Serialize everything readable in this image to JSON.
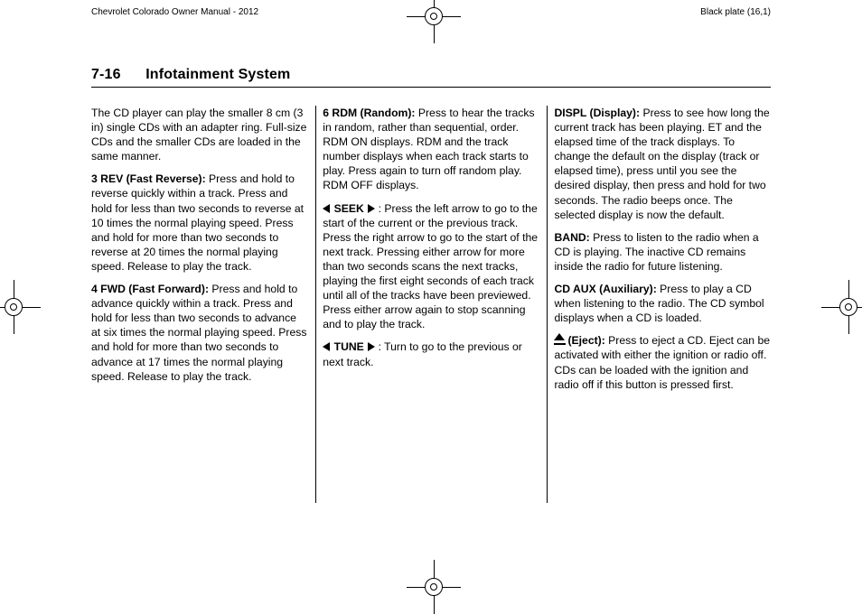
{
  "header": {
    "left": "Chevrolet Colorado Owner Manual - 2012",
    "right": "Black plate (16,1)"
  },
  "page": {
    "number": "7-16",
    "title": "Infotainment System"
  },
  "col1": {
    "p1": "The CD player can play the smaller 8 cm (3 in) single CDs with an adapter ring. Full-size CDs and the smaller CDs are loaded in the same manner.",
    "p2_label": "3 REV (Fast Reverse):",
    "p2_body": "  Press and hold to reverse quickly within a track. Press and hold for less than two seconds to reverse at 10 times the normal playing speed. Press and hold for more than two seconds to reverse at 20 times the normal playing speed. Release to play the track.",
    "p3_label": "4 FWD (Fast Forward):",
    "p3_body": "  Press and hold to advance quickly within a track. Press and hold for less than two seconds to advance at six times the normal playing speed. Press and hold for more than two seconds to advance at 17 times the normal playing speed. Release to play the track."
  },
  "col2": {
    "p1_label": "6 RDM (Random):",
    "p1_body": "  Press to hear the tracks in random, rather than sequential, order. RDM ON displays. RDM and the track number displays when each track starts to play. Press again to turn off random play. RDM OFF displays.",
    "p2_label": "SEEK",
    "p2_body": " :   Press the left arrow to go to the start of the current or the previous track. Press the right arrow to go to the start of the next track. Pressing either arrow for more than two seconds scans the next tracks, playing the first eight seconds of each track until all of the tracks have been previewed. Press either arrow again to stop scanning and to play the track.",
    "p3_label": "TUNE",
    "p3_body": " :   Turn to go to the previous or next track."
  },
  "col3": {
    "p1_label": "DISPL (Display):",
    "p1_body": "  Press to see how long the current track has been playing. ET and the elapsed time of the track displays. To change the default on the display (track or elapsed time), press until you see the desired display, then press and hold for two seconds. The radio beeps once. The selected display is now the default.",
    "p2_label": "BAND:",
    "p2_body": "  Press to listen to the radio when a CD is playing. The inactive CD remains inside the radio for future listening.",
    "p3_label": "CD AUX (Auxiliary):",
    "p3_body": "  Press to play a CD when listening to the radio. The CD symbol displays when a CD is loaded.",
    "p4_label": "(Eject):",
    "p4_body": "  Press to eject a CD. Eject can be activated with either the ignition or radio off. CDs can be loaded with the ignition and radio off if this button is pressed first."
  }
}
